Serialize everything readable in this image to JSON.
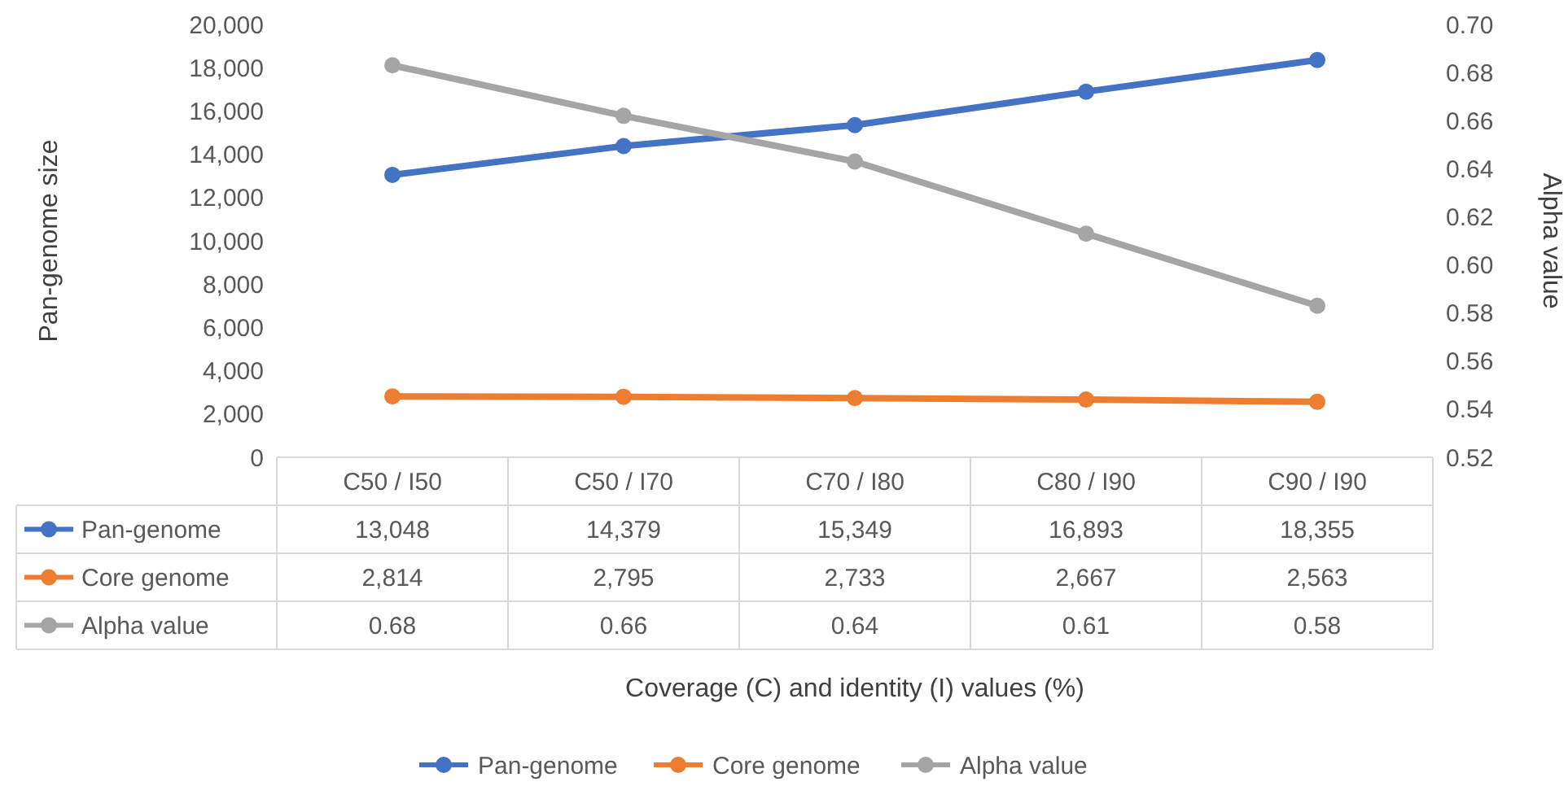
{
  "chart_data": {
    "type": "line",
    "categories": [
      "C50 / I50",
      "C50 / I70",
      "C70 / I80",
      "C80 / I90",
      "C90 / I90"
    ],
    "annotations": [
      "Coverage (C) and identity (I) values (%)"
    ],
    "ylabel": "Pan-genome size",
    "y2label": "Alpha value",
    "series": [
      {
        "name": "Pan-genome",
        "color": "#4472c4",
        "values": [
          13048,
          14379,
          15349,
          16893,
          18355
        ],
        "value_labels": [
          "13,048",
          "14,379",
          "15,349",
          "16,893",
          "18,355"
        ]
      },
      {
        "name": "Core genome",
        "color": "#ed7d31",
        "values": [
          2814,
          2795,
          2733,
          2667,
          2563
        ],
        "value_labels": [
          "2,814",
          "2,795",
          "2,733",
          "2,667",
          "2,563"
        ]
      },
      {
        "name": "Alpha value",
        "color": "#a5a5a5",
        "axis": "y2",
        "values": [
          0.683,
          0.662,
          0.643,
          0.613,
          0.583
        ],
        "value_labels": [
          "0.68",
          "0.66",
          "0.64",
          "0.61",
          "0.58"
        ]
      }
    ],
    "ylim": [
      0,
      20000
    ],
    "yticks": [
      {
        "value": 0,
        "label": "0"
      },
      {
        "value": 2000,
        "label": "2,000"
      },
      {
        "value": 4000,
        "label": "4,000"
      },
      {
        "value": 6000,
        "label": "6,000"
      },
      {
        "value": 8000,
        "label": "8,000"
      },
      {
        "value": 10000,
        "label": "10,000"
      },
      {
        "value": 12000,
        "label": "12,000"
      },
      {
        "value": 14000,
        "label": "14,000"
      },
      {
        "value": 16000,
        "label": "16,000"
      },
      {
        "value": 18000,
        "label": "18,000"
      },
      {
        "value": 20000,
        "label": "20,000"
      }
    ],
    "y2lim": [
      0.52,
      0.7
    ],
    "y2ticks": [
      {
        "value": 0.52,
        "label": "0.52"
      },
      {
        "value": 0.54,
        "label": "0.54"
      },
      {
        "value": 0.56,
        "label": "0.56"
      },
      {
        "value": 0.58,
        "label": "0.58"
      },
      {
        "value": 0.6,
        "label": "0.60"
      },
      {
        "value": 0.62,
        "label": "0.62"
      },
      {
        "value": 0.64,
        "label": "0.64"
      },
      {
        "value": 0.66,
        "label": "0.66"
      },
      {
        "value": 0.68,
        "label": "0.68"
      },
      {
        "value": 0.7,
        "label": "0.70"
      }
    ],
    "marker": "circle",
    "line_style": "solid",
    "legend": "bottom"
  }
}
